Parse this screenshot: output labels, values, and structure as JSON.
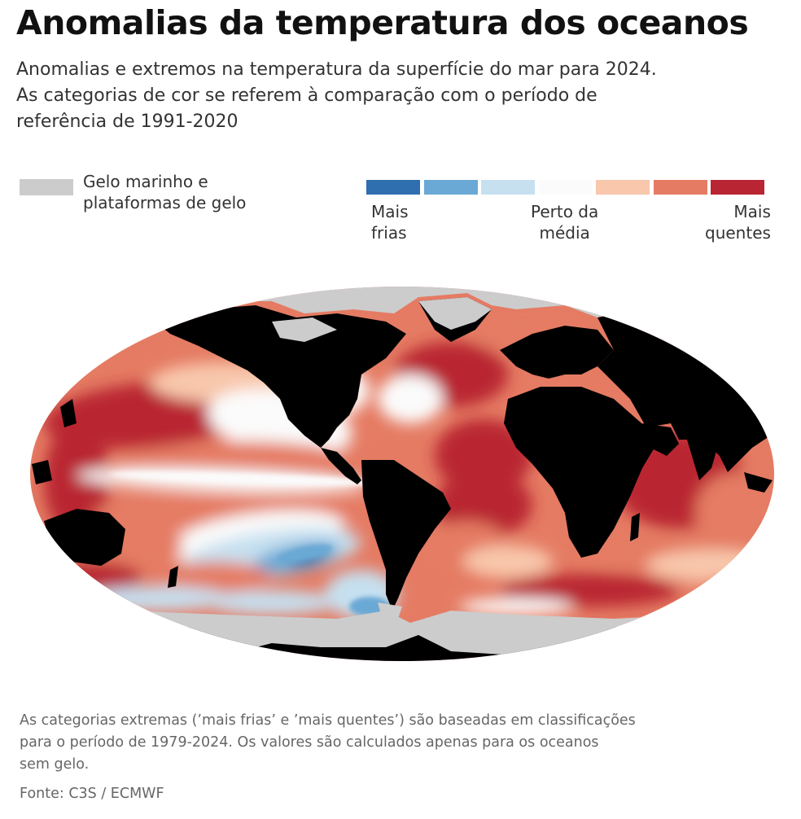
{
  "title": "Anomalias da temperatura dos oceanos",
  "subtitle_lines": [
    "Anomalias e extremos na temperatura da superfície do mar para 2024.",
    "As categorias de cor se referem à comparação com o período de",
    "referência de 1991-2020"
  ],
  "legend": {
    "ice": {
      "label_lines": [
        "Gelo marinho e",
        "plataformas de gelo"
      ],
      "color": "#cccccc"
    },
    "scale_colors": [
      "#2f6fb0",
      "#6aa9d5",
      "#c6e0f0",
      "#fbfbfb",
      "#f8c7ac",
      "#e57b63",
      "#b92533"
    ],
    "labels": {
      "cold": [
        "Mais",
        "frias"
      ],
      "mid": [
        "Perto da",
        "média"
      ],
      "hot": [
        "Mais",
        "quentes"
      ]
    }
  },
  "map": {
    "projection": "robinson",
    "colors": {
      "land": "#000000",
      "ice": "#cccccc",
      "hottest": "#b92533",
      "hot": "#e57b63",
      "warm": "#f8c7ac",
      "near_average": "#fbfbfb",
      "cool": "#c6e0f0",
      "cold": "#6aa9d5",
      "coldest": "#2f6fb0"
    }
  },
  "footnote_lines": [
    "As categorias extremas (’mais frias’ e ’mais quentes’) são baseadas em classificações",
    "para o período de 1979-2024. Os valores são calculados apenas para os oceanos",
    "sem gelo."
  ],
  "source": "Fonte: C3S / ECMWF"
}
